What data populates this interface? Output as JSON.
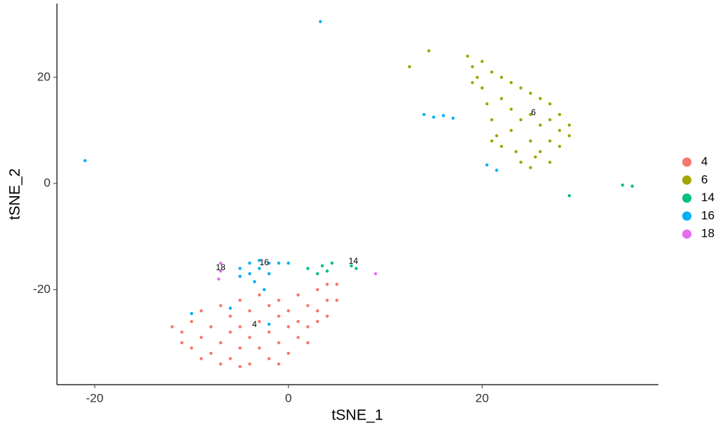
{
  "chart_data": {
    "type": "scatter",
    "x_label": "tSNE_1",
    "y_label": "tSNE_2",
    "xlim": [
      -23.9,
      38.2
    ],
    "ylim": [
      -37.9,
      33.9
    ],
    "xticks": [
      -20,
      0,
      20
    ],
    "yticks": [
      -20,
      0,
      20
    ],
    "legend": "right",
    "series": [
      {
        "name": "4",
        "color": "#F8766D",
        "x": [
          -11,
          -10,
          -10,
          -9,
          -9,
          -8,
          -8,
          -7,
          -7,
          -6,
          -6,
          -6,
          -5,
          -5,
          -5,
          -4,
          -4,
          -4,
          -3,
          -3,
          -3,
          -2,
          -2,
          -2,
          -1,
          -1,
          -1,
          0,
          0,
          0,
          1,
          1,
          1,
          2,
          2,
          2,
          3,
          3,
          3,
          4,
          4,
          4,
          5,
          5,
          -12,
          -11,
          -9,
          -7,
          -5,
          -1
        ],
        "y": [
          -28,
          -26,
          -31,
          -24,
          -29,
          -27,
          -32,
          -23,
          -30,
          -25,
          -28,
          -33,
          -22,
          -27,
          -31,
          -24,
          -29,
          -34,
          -21,
          -26,
          -31,
          -23,
          -28,
          -33,
          -22,
          -25,
          -30,
          -24,
          -27,
          -32,
          -21,
          -26,
          -29,
          -23,
          -27,
          -30,
          -20,
          -24,
          -26,
          -19,
          -22,
          -25,
          -19,
          -22,
          -27,
          -30,
          -33,
          -34,
          -34.5,
          -34
        ]
      },
      {
        "name": "6",
        "color": "#A3A500",
        "x": [
          18.5,
          19,
          19.5,
          20,
          20,
          20.5,
          21,
          21,
          21.5,
          22,
          22,
          22,
          23,
          23,
          23,
          23.5,
          24,
          24,
          24,
          25,
          25,
          25,
          25,
          26,
          26,
          26,
          27,
          27,
          27,
          27,
          28,
          28,
          28,
          29,
          29,
          21,
          19,
          12.5,
          14.5,
          25.5
        ],
        "y": [
          24,
          22,
          20,
          23,
          18,
          15,
          21,
          12,
          9,
          20,
          16,
          7,
          19,
          14,
          10,
          6,
          18,
          12,
          4,
          17,
          13,
          8,
          3,
          16,
          11,
          6,
          15,
          12,
          8,
          4,
          13,
          10,
          7,
          11,
          9,
          8,
          19,
          22,
          25,
          5
        ]
      },
      {
        "name": "14",
        "color": "#00BF7D",
        "x": [
          2,
          3,
          3.5,
          4,
          4.5,
          6.5,
          7,
          29,
          34.5,
          35.5
        ],
        "y": [
          -16,
          -17,
          -15.5,
          -16.5,
          -15,
          -15.5,
          -16,
          -2.3,
          -0.3,
          -0.5
        ]
      },
      {
        "name": "16",
        "color": "#00B0F6",
        "x": [
          -5,
          -5,
          -4,
          -4,
          -3.5,
          -3,
          -3,
          -2,
          -2,
          -1,
          0,
          -2.5,
          14,
          15,
          16,
          17,
          20.5,
          21.5,
          3.3,
          -21,
          -10,
          -6,
          -2
        ],
        "y": [
          -16,
          -17.5,
          -15,
          -17,
          -18.5,
          -14.5,
          -16,
          -15,
          -17,
          -15,
          -15,
          -20,
          13,
          12.5,
          12.8,
          12.3,
          3.5,
          2.5,
          30.5,
          4.3,
          -24.5,
          -23.5,
          -26.5
        ]
      },
      {
        "name": "18",
        "color": "#E76BF3",
        "x": [
          -7,
          -7,
          -7.2,
          9
        ],
        "y": [
          -15,
          -16.5,
          -18,
          -17
        ]
      }
    ],
    "annotations": [
      {
        "text": "4",
        "x": -3.5,
        "y": -26.6
      },
      {
        "text": "6",
        "x": 25.3,
        "y": 13.3
      },
      {
        "text": "14",
        "x": 6.7,
        "y": -14.7
      },
      {
        "text": "16",
        "x": -2.5,
        "y": -15
      },
      {
        "text": "18",
        "x": -7,
        "y": -15.9
      }
    ]
  }
}
